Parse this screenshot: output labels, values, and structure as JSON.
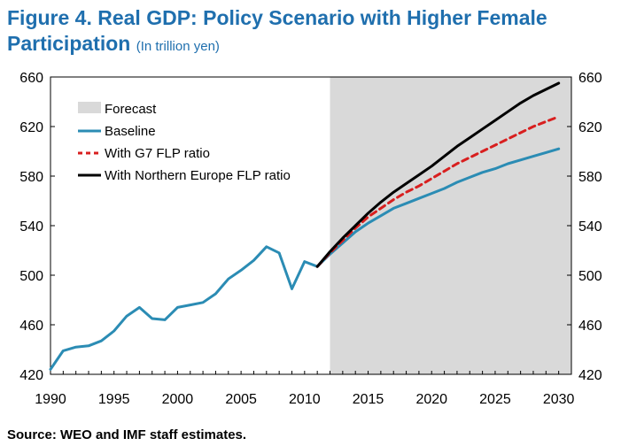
{
  "title": "Figure 4. Real GDP: Policy Scenario with Higher Female Participation",
  "subtitle": "(In trillion yen)",
  "source": "Source: WEO and IMF staff estimates.",
  "colors": {
    "title": "#1f6fae",
    "forecast": "#d9d9d9",
    "baseline": "#2b8cb4",
    "g7": "#d81f1f",
    "northern_europe": "#000000"
  },
  "chart_data": {
    "type": "line",
    "title": "Figure 4. Real GDP: Policy Scenario with Higher Female Participation",
    "ylabel": "(In trillion yen)",
    "xlabel": "",
    "xlim": [
      1990,
      2030
    ],
    "ylim": [
      420,
      660
    ],
    "x_ticks": [
      "1990",
      "1995",
      "2000",
      "2005",
      "2010",
      "2015",
      "2020",
      "2025",
      "2030"
    ],
    "y_ticks": [
      "420",
      "460",
      "500",
      "540",
      "580",
      "620",
      "660"
    ],
    "forecast_region": {
      "label": "Forecast",
      "start": 2012,
      "end": 2031
    },
    "legend_position": "top-left",
    "grid": false,
    "series": [
      {
        "name": "Baseline",
        "style": "solid",
        "x": [
          1990,
          1991,
          1992,
          1993,
          1994,
          1995,
          1996,
          1997,
          1998,
          1999,
          2000,
          2001,
          2002,
          2003,
          2004,
          2005,
          2006,
          2007,
          2008,
          2009,
          2010,
          2011,
          2012,
          2013,
          2014,
          2015,
          2016,
          2017,
          2018,
          2019,
          2020,
          2021,
          2022,
          2023,
          2024,
          2025,
          2026,
          2027,
          2028,
          2029,
          2030
        ],
        "values": [
          424,
          439,
          442,
          443,
          447,
          455,
          467,
          474,
          465,
          464,
          474,
          476,
          478,
          485,
          497,
          504,
          512,
          523,
          518,
          489,
          511,
          507,
          517,
          526,
          535,
          542,
          548,
          554,
          558,
          562,
          566,
          570,
          575,
          579,
          583,
          586,
          590,
          593,
          596,
          599,
          602
        ]
      },
      {
        "name": "With G7 FLP ratio",
        "style": "dashed",
        "x": [
          2011,
          2012,
          2013,
          2014,
          2015,
          2016,
          2017,
          2018,
          2019,
          2020,
          2021,
          2022,
          2023,
          2024,
          2025,
          2026,
          2027,
          2028,
          2029,
          2030
        ],
        "values": [
          507,
          518,
          528,
          538,
          547,
          554,
          561,
          567,
          572,
          578,
          584,
          590,
          595,
          600,
          605,
          610,
          615,
          620,
          624,
          628
        ]
      },
      {
        "name": "With Northern Europe FLP ratio",
        "style": "solid",
        "x": [
          2011,
          2012,
          2013,
          2014,
          2015,
          2016,
          2017,
          2018,
          2019,
          2020,
          2021,
          2022,
          2023,
          2024,
          2025,
          2026,
          2027,
          2028,
          2029,
          2030
        ],
        "values": [
          507,
          519,
          530,
          540,
          550,
          559,
          567,
          574,
          581,
          588,
          596,
          604,
          611,
          618,
          625,
          632,
          639,
          645,
          650,
          655
        ]
      }
    ]
  }
}
